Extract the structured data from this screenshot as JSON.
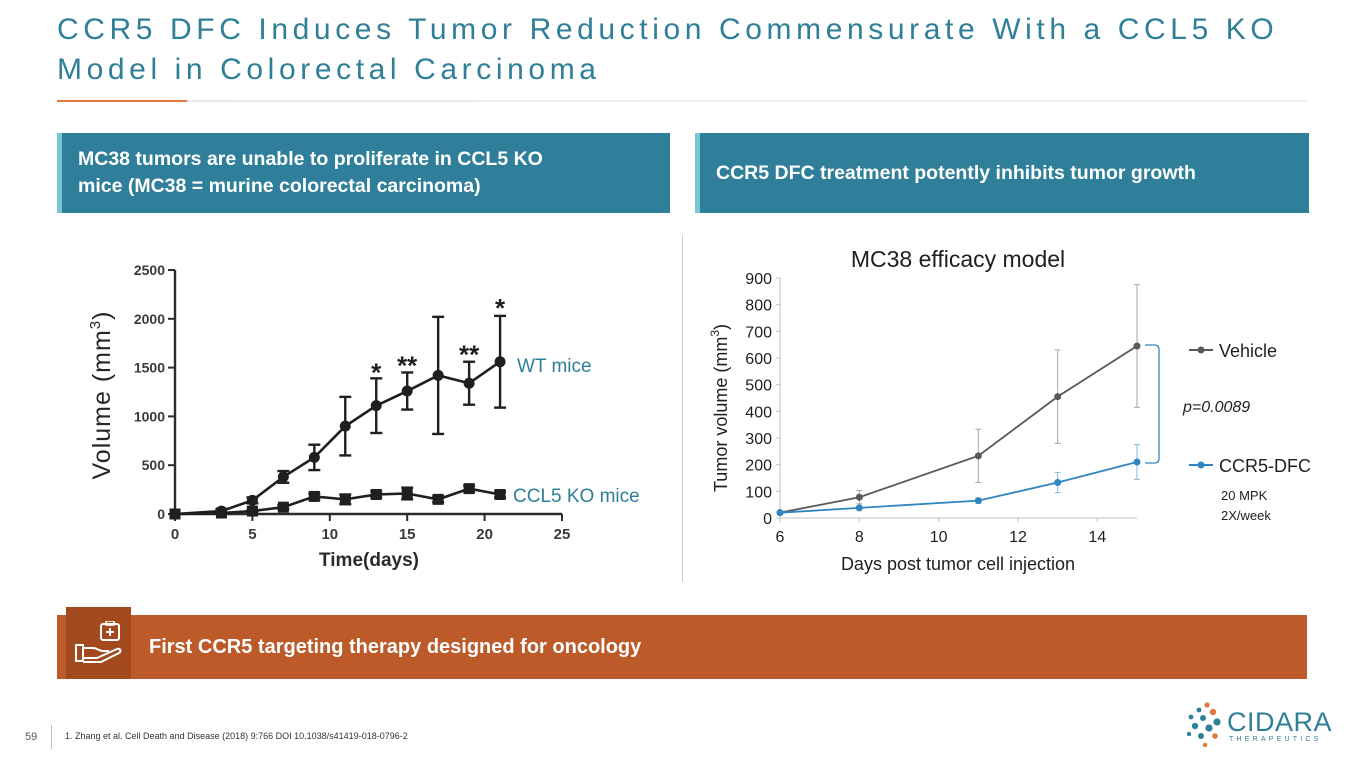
{
  "title": {
    "line1": "CCR5 DFC Induces Tumor Reduction Commensurate With a CCL5 KO",
    "line2": "Model in Colorectal Carcinoma"
  },
  "left_header": {
    "line1": "MC38 tumors are unable to proliferate in CCL5 KO",
    "line2": "mice (MC38 = murine colorectal carcinoma)"
  },
  "right_header": "CCR5 DFC treatment potently inhibits tumor growth",
  "bottom_banner": {
    "text": "First CCR5 targeting therapy designed for oncology",
    "icon": "hand-with-medical-kit-icon"
  },
  "footer": {
    "page_number": "59",
    "footnote": "1.    Zhang et al. Cell Death and Disease (2018) 9:766 DOI 10.1038/s41419-018-0796-2"
  },
  "logo": {
    "name": "CIDARA",
    "sub": "THERAPEUTICS"
  },
  "colors": {
    "title": "#2e7f97",
    "header_bg": "#2f7f9a",
    "banner_bg": "#bd5a2a",
    "accent": "#e07a3a",
    "vehicle": "#595959",
    "ccr5": "#2f86c0"
  },
  "chart_data": [
    {
      "type": "line",
      "title": "",
      "xlabel": "Time(days)",
      "ylabel_main": "Volume  (mm",
      "ylabel_sup": "3",
      "ylabel_close": ")",
      "xlim": [
        0,
        25
      ],
      "ylim": [
        0,
        2500
      ],
      "xticks": [
        0,
        5,
        10,
        15,
        20,
        25
      ],
      "yticks": [
        0,
        500,
        1000,
        1500,
        2000,
        2500
      ],
      "series": [
        {
          "name": "WT mice",
          "marker": "circle",
          "x": [
            0,
            3,
            5,
            7,
            9,
            11,
            13,
            15,
            17,
            19,
            21
          ],
          "y": [
            0,
            30,
            140,
            380,
            580,
            900,
            1110,
            1260,
            1420,
            1340,
            1560
          ],
          "err": [
            0,
            20,
            30,
            60,
            130,
            300,
            280,
            190,
            600,
            220,
            470
          ]
        },
        {
          "name": "CCL5 KO mice",
          "marker": "square",
          "x": [
            0,
            3,
            5,
            7,
            9,
            11,
            13,
            15,
            17,
            19,
            21
          ],
          "y": [
            0,
            10,
            30,
            70,
            180,
            150,
            200,
            210,
            150,
            260,
            200
          ],
          "err": [
            0,
            5,
            10,
            20,
            30,
            50,
            30,
            60,
            30,
            30,
            30
          ]
        }
      ],
      "annotations": [
        {
          "x": 13,
          "y": 1380,
          "text": "*"
        },
        {
          "x": 15,
          "y": 1450,
          "text": "**"
        },
        {
          "x": 19,
          "y": 1560,
          "text": "**"
        },
        {
          "x": 21,
          "y": 2040,
          "text": "*"
        }
      ]
    },
    {
      "type": "line",
      "title": "MC38 efficacy model",
      "xlabel": "Days post tumor cell injection",
      "ylabel_main": "Tumor volume (mm",
      "ylabel_sup": "3",
      "ylabel_close": ")",
      "xlim": [
        6,
        15
      ],
      "ylim": [
        0,
        900
      ],
      "xticks": [
        6,
        8,
        10,
        12,
        14
      ],
      "yticks": [
        0,
        100,
        200,
        300,
        400,
        500,
        600,
        700,
        800,
        900
      ],
      "series": [
        {
          "name": "Vehicle",
          "x": [
            6,
            8,
            11,
            13,
            15
          ],
          "y": [
            20,
            78,
            233,
            455,
            645
          ],
          "err": [
            0,
            25,
            100,
            175,
            230
          ]
        },
        {
          "name": "CCR5-DFC",
          "x": [
            6,
            8,
            11,
            13,
            15
          ],
          "y": [
            20,
            38,
            65,
            133,
            210
          ],
          "err": [
            0,
            5,
            10,
            38,
            65
          ]
        }
      ],
      "p_value": "p=0.0089",
      "dose": [
        "20 MPK",
        "2X/week"
      ]
    }
  ]
}
